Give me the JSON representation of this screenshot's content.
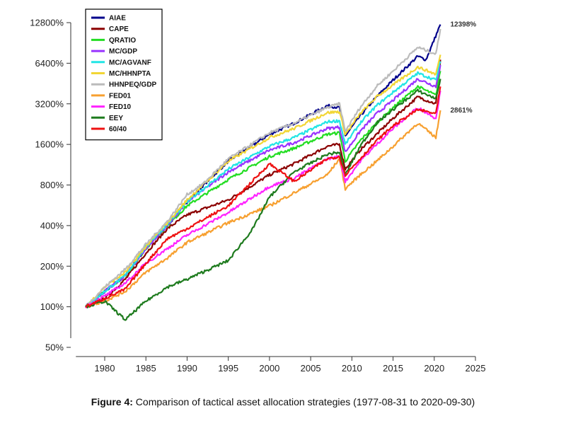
{
  "chart_data": {
    "type": "line",
    "y_scale": "log2",
    "y_ticks": [
      "50%",
      "100%",
      "200%",
      "400%",
      "800%",
      "1600%",
      "3200%",
      "6400%",
      "12800%"
    ],
    "y_tick_values": [
      50,
      100,
      200,
      400,
      800,
      1600,
      3200,
      6400,
      12800
    ],
    "x_ticks": [
      "1980",
      "1985",
      "1990",
      "1995",
      "2000",
      "2005",
      "2010",
      "2015",
      "2020",
      "2025"
    ],
    "x_tick_values": [
      1980,
      1985,
      1990,
      1995,
      2000,
      2005,
      2010,
      2015,
      2020,
      2025
    ],
    "xlim": [
      1975.5,
      2025
    ],
    "ylim": [
      50,
      12800
    ],
    "legend_position": "top-left",
    "grid": false,
    "annotations": [
      {
        "text": "12398%",
        "x": 2020.75,
        "y": 12398
      },
      {
        "text": "2861%",
        "x": 2020.75,
        "y": 2861
      }
    ],
    "series": [
      {
        "name": "AIAE",
        "color": "#00008B",
        "points": [
          [
            1977.67,
            100
          ],
          [
            1980,
            130
          ],
          [
            1982.5,
            170
          ],
          [
            1985,
            270
          ],
          [
            1987.6,
            400
          ],
          [
            1990,
            600
          ],
          [
            1992,
            800
          ],
          [
            1995,
            1200
          ],
          [
            2000,
            1900
          ],
          [
            2003,
            2300
          ],
          [
            2007,
            3100
          ],
          [
            2008.5,
            3000
          ],
          [
            2009.2,
            1850
          ],
          [
            2011,
            2600
          ],
          [
            2013,
            3600
          ],
          [
            2015,
            4800
          ],
          [
            2018,
            7200
          ],
          [
            2019,
            6800
          ],
          [
            2020.75,
            12398
          ]
        ]
      },
      {
        "name": "CAPE",
        "color": "#8B0000",
        "points": [
          [
            1977.67,
            100
          ],
          [
            1980,
            115
          ],
          [
            1982.5,
            160
          ],
          [
            1985,
            250
          ],
          [
            1987.6,
            380
          ],
          [
            1990,
            480
          ],
          [
            1995,
            620
          ],
          [
            2000,
            950
          ],
          [
            2003,
            1150
          ],
          [
            2007,
            1550
          ],
          [
            2008.5,
            1600
          ],
          [
            2009.2,
            1050
          ],
          [
            2011,
            1450
          ],
          [
            2013,
            1900
          ],
          [
            2015,
            2500
          ],
          [
            2018,
            3600
          ],
          [
            2020.2,
            3200
          ],
          [
            2020.75,
            6800
          ]
        ]
      },
      {
        "name": "QRATIO",
        "color": "#22DD22",
        "points": [
          [
            1977.67,
            100
          ],
          [
            1980,
            130
          ],
          [
            1982.5,
            170
          ],
          [
            1985,
            270
          ],
          [
            1987.6,
            400
          ],
          [
            1990,
            560
          ],
          [
            1995,
            880
          ],
          [
            2000,
            1300
          ],
          [
            2003,
            1500
          ],
          [
            2007,
            1900
          ],
          [
            2008.5,
            1950
          ],
          [
            2009.2,
            1200
          ],
          [
            2011,
            1700
          ],
          [
            2013,
            2300
          ],
          [
            2015,
            3000
          ],
          [
            2018,
            4300
          ],
          [
            2020.2,
            3700
          ],
          [
            2020.75,
            5600
          ]
        ]
      },
      {
        "name": "MC/GDP",
        "color": "#9933FF",
        "points": [
          [
            1977.67,
            100
          ],
          [
            1980,
            130
          ],
          [
            1982.5,
            170
          ],
          [
            1985,
            270
          ],
          [
            1987.6,
            400
          ],
          [
            1990,
            600
          ],
          [
            1995,
            1000
          ],
          [
            2000,
            1450
          ],
          [
            2003,
            1650
          ],
          [
            2007,
            2100
          ],
          [
            2008.5,
            2150
          ],
          [
            2009.2,
            1400
          ],
          [
            2011,
            2000
          ],
          [
            2013,
            2700
          ],
          [
            2015,
            3400
          ],
          [
            2018,
            4900
          ],
          [
            2020.2,
            4300
          ],
          [
            2020.75,
            6200
          ]
        ]
      },
      {
        "name": "MC/AGVANF",
        "color": "#22E5E5",
        "points": [
          [
            1977.67,
            100
          ],
          [
            1980,
            130
          ],
          [
            1982.5,
            170
          ],
          [
            1985,
            280
          ],
          [
            1987.6,
            410
          ],
          [
            1990,
            600
          ],
          [
            1995,
            1050
          ],
          [
            2000,
            1550
          ],
          [
            2003,
            1800
          ],
          [
            2007,
            2350
          ],
          [
            2008.5,
            2400
          ],
          [
            2009.2,
            1600
          ],
          [
            2011,
            2300
          ],
          [
            2013,
            3100
          ],
          [
            2015,
            3900
          ],
          [
            2018,
            5400
          ],
          [
            2020.2,
            4800
          ],
          [
            2020.75,
            6600
          ]
        ]
      },
      {
        "name": "MC/HHNPTA",
        "color": "#F2D635",
        "points": [
          [
            1977.67,
            100
          ],
          [
            1980,
            140
          ],
          [
            1982.5,
            180
          ],
          [
            1985,
            280
          ],
          [
            1987.6,
            420
          ],
          [
            1990,
            620
          ],
          [
            1995,
            1200
          ],
          [
            2000,
            1800
          ],
          [
            2003,
            2100
          ],
          [
            2007,
            2750
          ],
          [
            2008.5,
            2800
          ],
          [
            2009.2,
            1900
          ],
          [
            2011,
            2700
          ],
          [
            2013,
            3600
          ],
          [
            2015,
            4400
          ],
          [
            2018,
            6000
          ],
          [
            2020.2,
            5300
          ],
          [
            2020.75,
            7400
          ]
        ]
      },
      {
        "name": "HHNPEQ/GDP",
        "color": "#BBBBBB",
        "points": [
          [
            1977.67,
            100
          ],
          [
            1980,
            140
          ],
          [
            1982.5,
            190
          ],
          [
            1985,
            290
          ],
          [
            1987.6,
            430
          ],
          [
            1990,
            680
          ],
          [
            1992,
            820
          ],
          [
            1995,
            1250
          ],
          [
            2000,
            1950
          ],
          [
            2003,
            2300
          ],
          [
            2007,
            3000
          ],
          [
            2008.5,
            3200
          ],
          [
            2009.2,
            2000
          ],
          [
            2011,
            3000
          ],
          [
            2013,
            4300
          ],
          [
            2015,
            5600
          ],
          [
            2018,
            8400
          ],
          [
            2020.2,
            7500
          ],
          [
            2020.75,
            11500
          ]
        ]
      },
      {
        "name": "FED01",
        "color": "#F7A030",
        "points": [
          [
            1977.67,
            100
          ],
          [
            1980,
            110
          ],
          [
            1982.5,
            130
          ],
          [
            1985,
            180
          ],
          [
            1987.6,
            230
          ],
          [
            1990,
            300
          ],
          [
            1995,
            420
          ],
          [
            2000,
            560
          ],
          [
            2003,
            700
          ],
          [
            2007,
            950
          ],
          [
            2008.5,
            1250
          ],
          [
            2009.2,
            750
          ],
          [
            2011,
            950
          ],
          [
            2013,
            1200
          ],
          [
            2015,
            1550
          ],
          [
            2018,
            2300
          ],
          [
            2020.2,
            1800
          ],
          [
            2020.75,
            2861
          ]
        ]
      },
      {
        "name": "FED10",
        "color": "#FF22FF",
        "points": [
          [
            1977.67,
            100
          ],
          [
            1980,
            120
          ],
          [
            1982.5,
            150
          ],
          [
            1985,
            210
          ],
          [
            1987.6,
            270
          ],
          [
            1990,
            340
          ],
          [
            1995,
            500
          ],
          [
            2000,
            780
          ],
          [
            2003,
            900
          ],
          [
            2007,
            1250
          ],
          [
            2008.5,
            1300
          ],
          [
            2009.2,
            850
          ],
          [
            2011,
            1200
          ],
          [
            2013,
            1600
          ],
          [
            2015,
            2100
          ],
          [
            2018,
            3000
          ],
          [
            2020.2,
            2500
          ],
          [
            2020.75,
            4000
          ]
        ]
      },
      {
        "name": "EEY",
        "color": "#1E7B1E",
        "points": [
          [
            1977.67,
            100
          ],
          [
            1980,
            110
          ],
          [
            1982.5,
            80
          ],
          [
            1985,
            110
          ],
          [
            1987.6,
            140
          ],
          [
            1990,
            160
          ],
          [
            1995,
            220
          ],
          [
            1998,
            380
          ],
          [
            2000,
            650
          ],
          [
            2003,
            1000
          ],
          [
            2007,
            1350
          ],
          [
            2008.5,
            1400
          ],
          [
            2009.2,
            950
          ],
          [
            2011,
            1550
          ],
          [
            2013,
            2300
          ],
          [
            2015,
            2900
          ],
          [
            2018,
            4000
          ],
          [
            2020.2,
            3500
          ],
          [
            2020.75,
            4900
          ]
        ]
      },
      {
        "name": "60/40",
        "color": "#EE1111",
        "points": [
          [
            1977.67,
            100
          ],
          [
            1980,
            115
          ],
          [
            1982.5,
            135
          ],
          [
            1985,
            210
          ],
          [
            1987.6,
            320
          ],
          [
            1990,
            380
          ],
          [
            1995,
            560
          ],
          [
            2000,
            1150
          ],
          [
            2003,
            850
          ],
          [
            2007,
            1250
          ],
          [
            2008.5,
            1300
          ],
          [
            2009.2,
            950
          ],
          [
            2011,
            1250
          ],
          [
            2013,
            1700
          ],
          [
            2015,
            2200
          ],
          [
            2018,
            2900
          ],
          [
            2020.2,
            2700
          ],
          [
            2020.75,
            4300
          ]
        ]
      }
    ]
  },
  "caption": {
    "label": "Figure 4:",
    "text": " Comparison of tactical asset allocation strategies (1977-08-31 to 2020-09-30)"
  }
}
